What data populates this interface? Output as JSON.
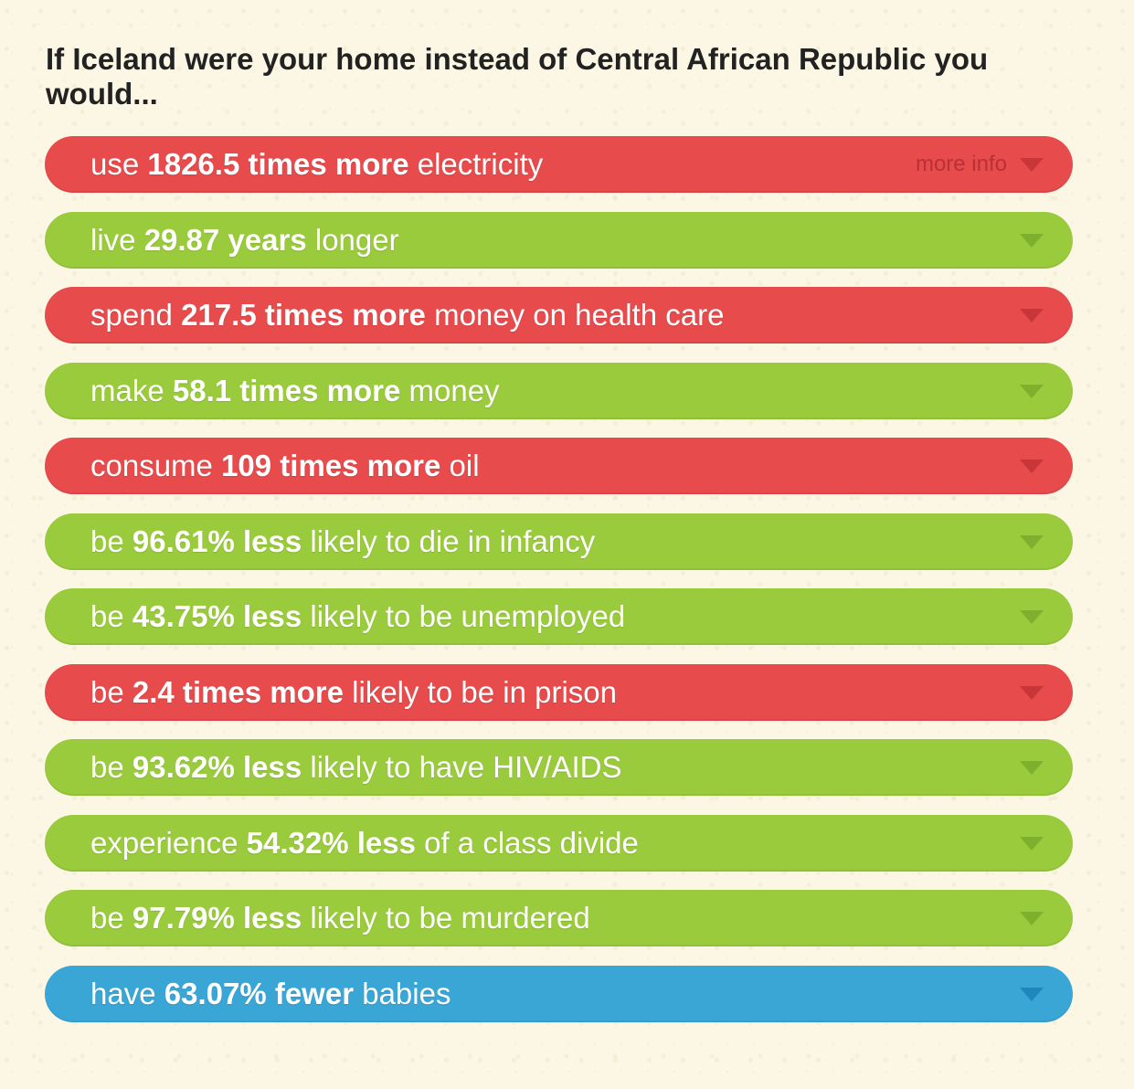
{
  "heading": "If Iceland were your home instead of Central African Republic you would...",
  "more_info_label": "more info",
  "colors": {
    "red": "#e74b4c",
    "green": "#9acb3c",
    "blue": "#3aa6d6",
    "background": "#fbf7e4"
  },
  "items": [
    {
      "pre": "use ",
      "bold": "1826.5 times more",
      "post": " electricity",
      "color": "red",
      "icon": "chevron-down-icon"
    },
    {
      "pre": "live ",
      "bold": "29.87 years",
      "post": " longer",
      "color": "green",
      "icon": "chevron-down-icon"
    },
    {
      "pre": "spend ",
      "bold": "217.5 times more",
      "post": " money on health care",
      "color": "red",
      "icon": "chevron-down-icon"
    },
    {
      "pre": "make ",
      "bold": "58.1 times more",
      "post": " money",
      "color": "green",
      "icon": "chevron-down-icon"
    },
    {
      "pre": "consume ",
      "bold": "109 times more",
      "post": " oil",
      "color": "red",
      "icon": "chevron-down-icon"
    },
    {
      "pre": "be ",
      "bold": "96.61% less",
      "post": " likely to die in infancy",
      "color": "green",
      "icon": "chevron-down-icon"
    },
    {
      "pre": "be ",
      "bold": "43.75% less",
      "post": " likely to be unemployed",
      "color": "green",
      "icon": "chevron-down-icon"
    },
    {
      "pre": "be ",
      "bold": "2.4 times more",
      "post": " likely to be in prison",
      "color": "red",
      "icon": "chevron-down-icon"
    },
    {
      "pre": "be ",
      "bold": "93.62% less",
      "post": " likely to have HIV/AIDS",
      "color": "green",
      "icon": "chevron-down-icon"
    },
    {
      "pre": "experience ",
      "bold": "54.32% less",
      "post": " of a class divide",
      "color": "green",
      "icon": "chevron-down-icon"
    },
    {
      "pre": "be ",
      "bold": "97.79% less",
      "post": " likely to be murdered",
      "color": "green",
      "icon": "chevron-down-icon"
    },
    {
      "pre": "have ",
      "bold": "63.07% fewer",
      "post": " babies",
      "color": "blue",
      "icon": "chevron-down-icon"
    }
  ]
}
